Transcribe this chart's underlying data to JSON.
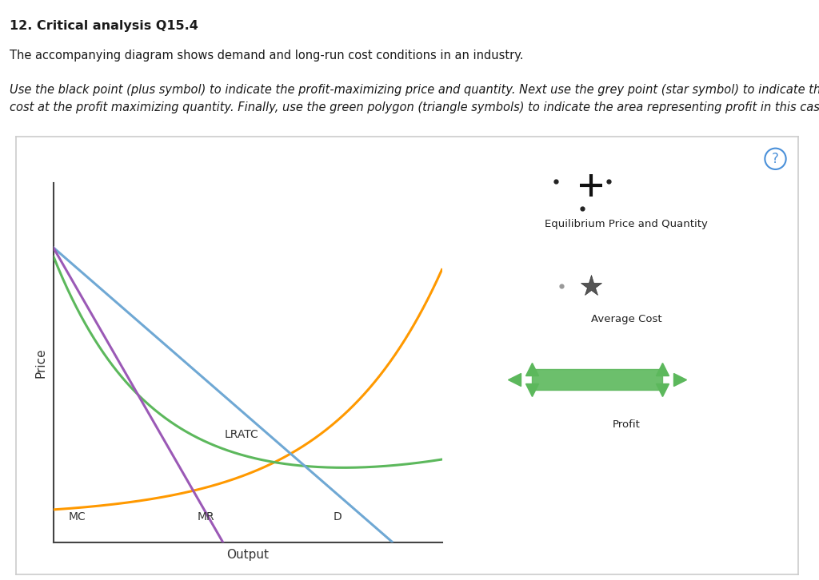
{
  "title_bold": "12. Critical analysis Q15.4",
  "desc1": "The accompanying diagram shows demand and long-run cost conditions in an industry.",
  "desc2_line1": "Use the black point (plus symbol) to indicate the profit-maximizing price and quantity. Next use the grey point (star symbol) to indicate the average",
  "desc2_line2": "cost at the profit maximizing quantity. Finally, use the green polygon (triangle symbols) to indicate the area representing profit in this case.",
  "fig_background": "#ffffff",
  "ylabel": "Price",
  "xlabel": "Output",
  "colors": {
    "MC": "#ff9900",
    "LRATC": "#5cb85c",
    "D": "#6fa8d4",
    "MR": "#9b59b6"
  },
  "green_profit": "#5cb85c",
  "legend_plus_color": "#222222",
  "legend_star_color": "#666666",
  "curve_label_color": "#333333",
  "panel_border": "#cccccc",
  "qmark_color": "#4a90d9"
}
